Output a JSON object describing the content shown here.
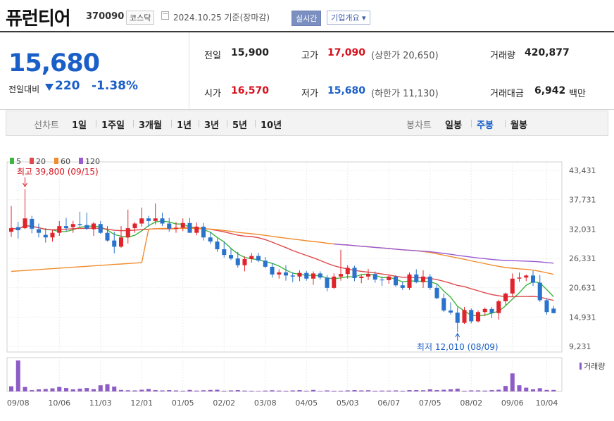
{
  "header": {
    "title": "퓨런티어",
    "code": "370090",
    "market": "코스닥",
    "basis": "2024.10.25  기준(장마감)",
    "realtime_label": "실시간",
    "overview_label": "기업개요 ▾"
  },
  "quote": {
    "price": "15,680",
    "prev_label": "전일대비",
    "change": "220",
    "change_pct": "-1.38%",
    "prev_close_label": "전일",
    "prev_close": "15,900",
    "open_label": "시가",
    "open": "16,570",
    "high_label": "고가",
    "high": "17,090",
    "upper_limit": "(상한가 20,650)",
    "low_label": "저가",
    "low": "15,680",
    "lower_limit": "(하한가 11,130)",
    "volume_label": "거래량",
    "volume": "420,877",
    "amount_label": "거래대금",
    "amount": "6,942",
    "amount_unit": "백만"
  },
  "periods": {
    "line_chart_label": "선차트",
    "line_items": [
      "1일",
      "1주일",
      "3개월",
      "1년",
      "3년",
      "5년",
      "10년"
    ],
    "candle_label": "봉차트",
    "candle_items": [
      "일봉",
      "주봉",
      "월봉"
    ],
    "active": "주봉"
  },
  "chart_data": {
    "type": "candlestick",
    "legend": [
      {
        "name": "5",
        "color": "#3fb53f"
      },
      {
        "name": "20",
        "color": "#e0484c"
      },
      {
        "name": "60",
        "color": "#f08c2c"
      },
      {
        "name": "120",
        "color": "#9b5bd1"
      }
    ],
    "y_ticks": [
      "43,431",
      "37,731",
      "32,031",
      "26,331",
      "20,631",
      "14,931",
      "9,231"
    ],
    "y_range": [
      9231,
      43431
    ],
    "x_labels": [
      "09/08",
      "10/06",
      "11/03",
      "12/01",
      "01/05",
      "02/02",
      "03/08",
      "04/05",
      "05/03",
      "06/07",
      "07/05",
      "08/02",
      "09/06",
      "10/04"
    ],
    "annotation_high": "최고 39,800 (09/15)",
    "annotation_low": "최저 12,010 (08/09)",
    "volume_label": "거래량",
    "candles": [
      [
        31500,
        36500,
        30500,
        32200
      ],
      [
        32400,
        33400,
        30200,
        31800
      ],
      [
        32200,
        39800,
        32000,
        34100
      ],
      [
        34000,
        34600,
        31200,
        32100
      ],
      [
        32000,
        33100,
        30400,
        31300
      ],
      [
        30900,
        32200,
        29400,
        30400
      ],
      [
        30400,
        31800,
        29600,
        31300
      ],
      [
        31300,
        33600,
        30700,
        32600
      ],
      [
        32600,
        34200,
        31600,
        32200
      ],
      [
        32400,
        33600,
        31300,
        33000
      ],
      [
        33000,
        35400,
        32500,
        32800
      ],
      [
        32800,
        35200,
        31800,
        32100
      ],
      [
        32000,
        33400,
        30700,
        33100
      ],
      [
        33000,
        33600,
        31100,
        31300
      ],
      [
        31300,
        32600,
        29600,
        29800
      ],
      [
        29800,
        31500,
        27300,
        28600
      ],
      [
        28600,
        32600,
        28400,
        30400
      ],
      [
        30400,
        35800,
        29200,
        32200
      ],
      [
        32200,
        33400,
        31300,
        33100
      ],
      [
        33100,
        36200,
        32500,
        34100
      ],
      [
        34100,
        34600,
        32500,
        33600
      ],
      [
        33600,
        37000,
        32900,
        34100
      ],
      [
        34100,
        35200,
        32600,
        33100
      ],
      [
        33100,
        34200,
        31500,
        32100
      ],
      [
        32100,
        33400,
        31300,
        32300
      ],
      [
        32300,
        34100,
        31600,
        33200
      ],
      [
        33200,
        34200,
        31500,
        31300
      ],
      [
        31300,
        33300,
        30800,
        32500
      ],
      [
        32500,
        33200,
        29800,
        30400
      ],
      [
        30400,
        31500,
        29100,
        29600
      ],
      [
        29600,
        30200,
        27600,
        28100
      ],
      [
        28100,
        29500,
        26500,
        27000
      ],
      [
        27000,
        28300,
        26000,
        26300
      ],
      [
        26300,
        27600,
        24500,
        25000
      ],
      [
        25000,
        26700,
        23800,
        26200
      ],
      [
        26200,
        27400,
        25500,
        26800
      ],
      [
        26800,
        27400,
        25600,
        25900
      ],
      [
        25900,
        26600,
        24400,
        24700
      ],
      [
        24700,
        25400,
        22600,
        23200
      ],
      [
        23200,
        24200,
        22400,
        23600
      ],
      [
        23600,
        25000,
        22000,
        23000
      ],
      [
        23000,
        23600,
        21700,
        22800
      ],
      [
        22800,
        24000,
        21900,
        23500
      ],
      [
        23500,
        23900,
        22000,
        22400
      ],
      [
        22400,
        23800,
        21200,
        23400
      ],
      [
        23400,
        23800,
        22200,
        22600
      ],
      [
        22600,
        23100,
        19900,
        20600
      ],
      [
        20600,
        23400,
        20400,
        22800
      ],
      [
        22800,
        28000,
        22000,
        23300
      ],
      [
        23300,
        25000,
        22400,
        24500
      ],
      [
        24500,
        24900,
        21900,
        22500
      ],
      [
        22500,
        23200,
        21500,
        22800
      ],
      [
        22800,
        24300,
        22100,
        23300
      ],
      [
        23300,
        23800,
        21600,
        22200
      ],
      [
        22200,
        22800,
        21000,
        22100
      ],
      [
        22100,
        23200,
        21400,
        22800
      ],
      [
        22800,
        23100,
        20800,
        21100
      ],
      [
        21100,
        21800,
        20200,
        20600
      ],
      [
        20600,
        23600,
        20200,
        23200
      ],
      [
        23200,
        24200,
        21500,
        21700
      ],
      [
        21700,
        24000,
        20600,
        22800
      ],
      [
        22800,
        23300,
        20200,
        20600
      ],
      [
        20600,
        21400,
        18400,
        18600
      ],
      [
        18600,
        19500,
        15900,
        16200
      ],
      [
        16200,
        17800,
        15400,
        15800
      ],
      [
        15800,
        16800,
        12010,
        13800
      ],
      [
        13800,
        16900,
        13600,
        16300
      ],
      [
        16300,
        16600,
        13700,
        14100
      ],
      [
        14100,
        16200,
        13900,
        15900
      ],
      [
        15900,
        16800,
        15100,
        16500
      ],
      [
        16500,
        16900,
        14700,
        15700
      ],
      [
        15700,
        18300,
        14400,
        18000
      ],
      [
        18000,
        19700,
        17300,
        19500
      ],
      [
        19500,
        23400,
        18900,
        22400
      ],
      [
        22400,
        23600,
        21800,
        22600
      ],
      [
        22600,
        23200,
        21900,
        23000
      ],
      [
        23000,
        23900,
        21000,
        21600
      ],
      [
        21600,
        23100,
        17900,
        18200
      ],
      [
        18200,
        18500,
        15400,
        15900
      ],
      [
        16570,
        17090,
        15680,
        15680
      ]
    ],
    "volumes": [
      300,
      1800,
      260,
      80,
      120,
      140,
      180,
      260,
      200,
      120,
      160,
      200,
      130,
      360,
      420,
      280,
      90,
      70,
      60,
      100,
      140,
      80,
      60,
      80,
      60,
      40,
      90,
      50,
      70,
      90,
      100,
      40,
      60,
      80,
      50,
      40,
      30,
      50,
      70,
      50,
      40,
      60,
      80,
      40,
      90,
      30,
      60,
      40,
      40,
      60,
      80,
      60,
      70,
      40,
      50,
      50,
      60,
      40,
      80,
      80,
      70,
      120,
      80,
      100,
      120,
      160,
      40,
      60,
      60,
      50,
      80,
      100,
      320,
      1050,
      360,
      220,
      120,
      190,
      90,
      90
    ]
  }
}
